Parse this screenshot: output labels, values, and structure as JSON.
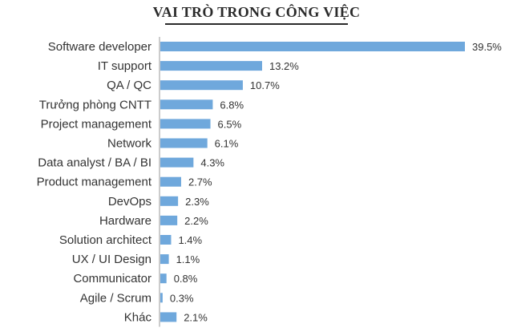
{
  "chart_data": {
    "type": "bar",
    "orientation": "horizontal",
    "title": "VAI TRÒ TRONG CÔNG VIỆC",
    "categories": [
      "Software developer",
      "IT support",
      "QA / QC",
      "Trưởng phòng CNTT",
      "Project management",
      "Network",
      "Data analyst / BA / BI",
      "Product management",
      "DevOps",
      "Hardware",
      "Solution architect",
      "UX / UI Design",
      "Communicator",
      "Agile / Scrum",
      "Khác"
    ],
    "values": [
      39.5,
      13.2,
      10.7,
      6.8,
      6.5,
      6.1,
      4.3,
      2.7,
      2.3,
      2.2,
      1.4,
      1.1,
      0.8,
      0.3,
      2.1
    ],
    "value_labels": [
      "39.5%",
      "13.2%",
      "10.7%",
      "6.8%",
      "6.5%",
      "6.1%",
      "4.3%",
      "2.7%",
      "2.3%",
      "2.2%",
      "1.4%",
      "1.1%",
      "0.8%",
      "0.3%",
      "2.1%"
    ],
    "bar_color": "#6fa8dc",
    "xlim": [
      0,
      39.5
    ],
    "grid": false,
    "legend": "none"
  }
}
